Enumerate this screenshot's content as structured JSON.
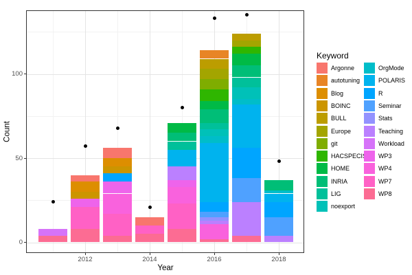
{
  "chart_data": {
    "type": "bar",
    "stacked": true,
    "title": "",
    "xlabel": "Year",
    "ylabel": "Count",
    "legend_title": "Keyword",
    "legend_position": "right",
    "grid": true,
    "x_ticks": [
      2012,
      2014,
      2016,
      2018
    ],
    "x_minor": [
      2011,
      2013,
      2015,
      2017
    ],
    "y_ticks": [
      0,
      50,
      100
    ],
    "y_minor": [
      25,
      75,
      125
    ],
    "xlim": [
      2010.2,
      2018.8
    ],
    "ylim": [
      -6,
      138
    ],
    "keywords": [
      "Argonne",
      "autotuning",
      "Blog",
      "BOINC",
      "BULL",
      "Europe",
      "git",
      "HACSPECIS",
      "HOME",
      "INRIA",
      "LIG",
      "noexport",
      "OrgMode",
      "POLARIS",
      "R",
      "Seminar",
      "Stats",
      "Teaching",
      "Workload",
      "WP3",
      "WP4",
      "WP7",
      "WP8"
    ],
    "legend_columns": [
      [
        "Argonne",
        "autotuning",
        "Blog",
        "BOINC",
        "BULL",
        "Europe",
        "git",
        "HACSPECIS",
        "HOME",
        "INRIA",
        "LIG",
        "noexport"
      ],
      [
        "OrgMode",
        "POLARIS",
        "R",
        "Seminar",
        "Stats",
        "Teaching",
        "Workload",
        "WP3",
        "WP4",
        "WP7",
        "WP8"
      ]
    ],
    "palette": {
      "Argonne": "#F8766D",
      "autotuning": "#E88526",
      "Blog": "#DD8E00",
      "BOINC": "#CC9500",
      "BULL": "#BC9D00",
      "Europe": "#A3A500",
      "git": "#7FAD00",
      "HACSPECIS": "#2FB600",
      "HOME": "#00BA46",
      "INRIA": "#00BE77",
      "LIG": "#00C09A",
      "noexport": "#00C1B8",
      "OrgMode": "#00BDC9",
      "POLARIS": "#00B3EE",
      "R": "#00A5FF",
      "Seminar": "#4FA1FF",
      "Stats": "#9392FF",
      "Teaching": "#BB80FF",
      "Workload": "#D673F9",
      "WP3": "#EE64EB",
      "WP4": "#F962DD",
      "WP7": "#FF61C5",
      "WP8": "#FC6C93"
    },
    "bars": [
      {
        "year": 2011,
        "total": 8,
        "segments": [
          [
            "WP8",
            4
          ],
          [
            "Workload",
            4
          ]
        ]
      },
      {
        "year": 2012,
        "total": 40,
        "segments": [
          [
            "WP8",
            8
          ],
          [
            "WP7",
            13
          ],
          [
            "WP3",
            5
          ],
          [
            "BOINC",
            4
          ],
          [
            "Blog",
            6
          ],
          [
            "Argonne",
            4
          ]
        ]
      },
      {
        "year": 2013,
        "total": 56,
        "segments": [
          [
            "WP8",
            4
          ],
          [
            "WP7",
            13
          ],
          [
            "WP4",
            12
          ],
          [
            "WP3",
            7
          ],
          [
            "R",
            5
          ],
          [
            "BOINC",
            4
          ],
          [
            "Blog",
            5
          ],
          [
            "Argonne",
            6
          ]
        ]
      },
      {
        "year": 2014,
        "total": 15,
        "segments": [
          [
            "WP8",
            5
          ],
          [
            "WP7",
            5
          ],
          [
            "Argonne",
            5
          ]
        ]
      },
      {
        "year": 2015,
        "total": 71,
        "segments": [
          [
            "WP8",
            8
          ],
          [
            "WP7",
            15
          ],
          [
            "WP4",
            10
          ],
          [
            "WP3",
            4
          ],
          [
            "Teaching",
            8
          ],
          [
            "POLARIS",
            10
          ],
          [
            "LIG",
            5
          ],
          [
            "INRIA",
            5
          ],
          [
            "HOME",
            6
          ]
        ]
      },
      {
        "year": 2016,
        "total": 114,
        "segments": [
          [
            "WP8",
            2
          ],
          [
            "WP4",
            9
          ],
          [
            "Teaching",
            2
          ],
          [
            "Stats",
            2
          ],
          [
            "Seminar",
            3
          ],
          [
            "R",
            6
          ],
          [
            "POLARIS",
            35
          ],
          [
            "OrgMode",
            4
          ],
          [
            "noexport",
            4
          ],
          [
            "LIG",
            4
          ],
          [
            "INRIA",
            8
          ],
          [
            "HOME",
            5
          ],
          [
            "HACSPECIS",
            7
          ],
          [
            "git",
            6
          ],
          [
            "Europe",
            6
          ],
          [
            "BULL",
            6
          ],
          [
            "autotuning",
            5
          ]
        ]
      },
      {
        "year": 2017,
        "total": 124,
        "segments": [
          [
            "WP8",
            4
          ],
          [
            "Teaching",
            20
          ],
          [
            "Seminar",
            14
          ],
          [
            "R",
            18
          ],
          [
            "POLARIS",
            26
          ],
          [
            "OrgMode",
            3
          ],
          [
            "noexport",
            7
          ],
          [
            "LIG",
            6
          ],
          [
            "INRIA",
            7
          ],
          [
            "HOME",
            7
          ],
          [
            "HACSPECIS",
            4
          ],
          [
            "Europe",
            4
          ],
          [
            "BULL",
            4
          ]
        ]
      },
      {
        "year": 2018,
        "total": 37,
        "segments": [
          [
            "Teaching",
            4
          ],
          [
            "Seminar",
            11
          ],
          [
            "R",
            9
          ],
          [
            "POLARIS",
            5
          ],
          [
            "OrgMode",
            2
          ],
          [
            "INRIA",
            6
          ]
        ]
      }
    ],
    "points": [
      {
        "year": 2011,
        "value": 24
      },
      {
        "year": 2012,
        "value": 57
      },
      {
        "year": 2013,
        "value": 68
      },
      {
        "year": 2014,
        "value": 21
      },
      {
        "year": 2015,
        "value": 80
      },
      {
        "year": 2016,
        "value": 133
      },
      {
        "year": 2017,
        "value": 135
      },
      {
        "year": 2018,
        "value": 48
      }
    ],
    "style": {
      "background": "#FFFFFF",
      "panel_border": "#333333",
      "grid_major": "#E4E4E4",
      "grid_minor": "#F2F2F2",
      "point_color": "#000000",
      "tick_color": "#333333",
      "tick_label_color": "#4D4D4D",
      "title_color": "#000000"
    }
  }
}
